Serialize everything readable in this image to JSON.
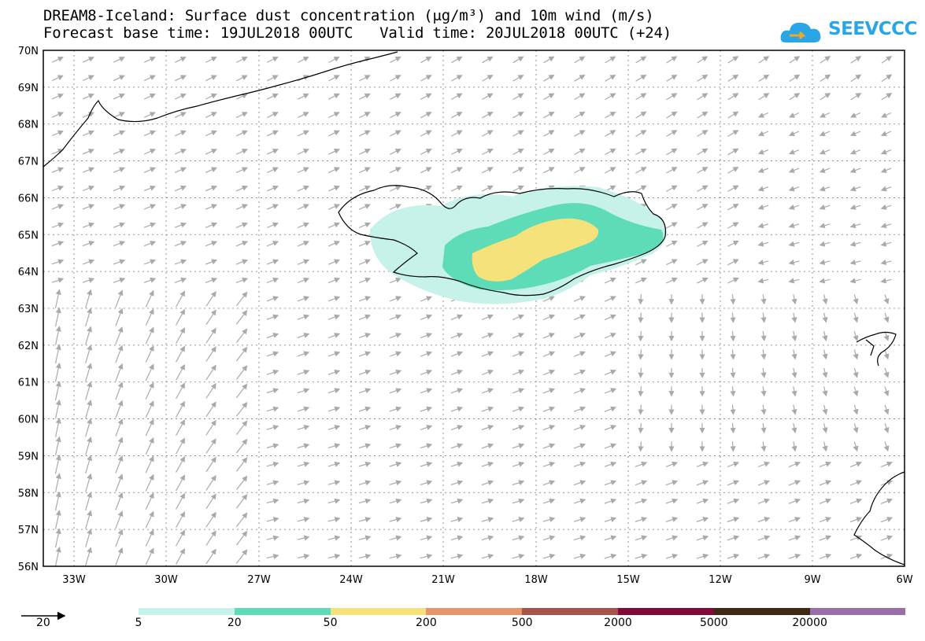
{
  "title": {
    "line1": "DREAM8-Iceland: Surface dust concentration (μg/m³) and 10m wind (m/s)",
    "line2": "Forecast base time: 19JUL2018 00UTC   Valid time: 20JUL2018 00UTC (+24)"
  },
  "logo": {
    "text": "SEEVCCC",
    "color": "#2aa6e6"
  },
  "map": {
    "lat_labels": [
      "70N",
      "69N",
      "68N",
      "67N",
      "66N",
      "65N",
      "64N",
      "63N",
      "62N",
      "61N",
      "60N",
      "59N",
      "58N",
      "57N",
      "56N"
    ],
    "lon_labels": [
      "33W",
      "30W",
      "27W",
      "24W",
      "21W",
      "18W",
      "15W",
      "12W",
      "9W",
      "6W"
    ],
    "wind_arrow_color": "#aaaaaa",
    "coast_color": "#000000"
  },
  "legend": {
    "reference_arrow_label": "20",
    "levels": [
      "5",
      "20",
      "50",
      "200",
      "500",
      "2000",
      "5000",
      "20000"
    ],
    "colors": [
      "#c6f2ea",
      "#5edcb8",
      "#f5e27a",
      "#e8936a",
      "#a65449",
      "#820a38",
      "#3f2814",
      "#9a6fa8"
    ]
  }
}
